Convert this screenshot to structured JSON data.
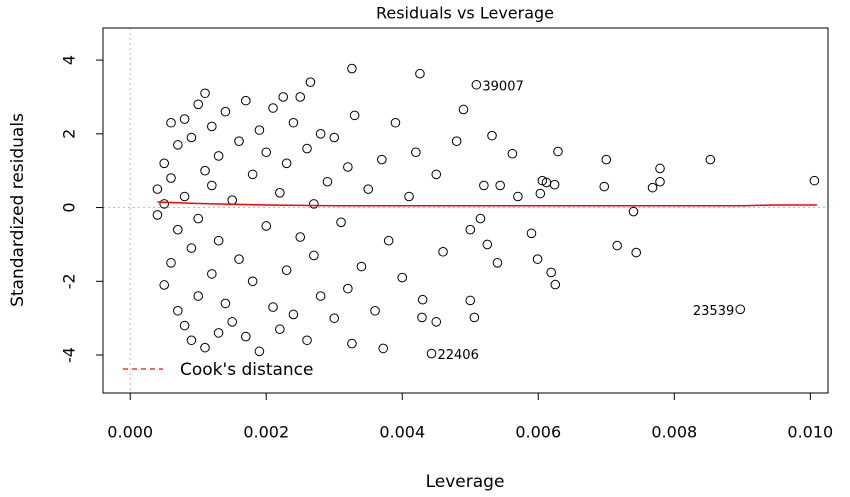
{
  "chart_data": {
    "type": "scatter",
    "title": "Residuals vs Leverage",
    "x_label": "Leverage",
    "y_label": "Standardized residuals",
    "xlim": [
      -0.0004,
      0.01026
    ],
    "ylim": [
      -5.03,
      4.87
    ],
    "xticks": [
      {
        "value": 0,
        "label": "0.000"
      },
      {
        "value": 0.002,
        "label": "0.002"
      },
      {
        "value": 0.004,
        "label": "0.004"
      },
      {
        "value": 0.006,
        "label": "0.006"
      },
      {
        "value": 0.008,
        "label": "0.008"
      },
      {
        "value": 0.01,
        "label": "0.010"
      }
    ],
    "yticks": [
      -4,
      -2,
      0,
      2,
      4
    ],
    "vline": 0,
    "hline": 0,
    "series": [
      {
        "color": "#000000",
        "x": [
          0.00509,
          0.00443,
          0.00897,
          0.01006,
          0.00853,
          0.00779,
          0.00779,
          0.00768,
          0.0074,
          0.00744,
          0.00716,
          0.007,
          0.00697,
          0.00629,
          0.00624,
          0.00612,
          0.00606,
          0.00625,
          0.00619,
          0.00599,
          0.00603,
          0.00426,
          0.00326,
          0.00265,
          0.00225,
          0.00506,
          0.005,
          0.0045,
          0.00429,
          0.00372,
          0.00326,
          0.00532,
          0.0049,
          0.00562,
          0.00544,
          0.00525,
          0.00515,
          0.0004,
          0.0004,
          0.0005,
          0.0005,
          0.0005,
          0.0006,
          0.0006,
          0.0006,
          0.0007,
          0.0007,
          0.0007,
          0.0008,
          0.0008,
          0.0008,
          0.0009,
          0.0009,
          0.0009,
          0.001,
          0.001,
          0.001,
          0.0011,
          0.0011,
          0.0011,
          0.0012,
          0.0012,
          0.0012,
          0.0013,
          0.0013,
          0.0013,
          0.0014,
          0.0014,
          0.0015,
          0.0015,
          0.0016,
          0.0016,
          0.0017,
          0.0017,
          0.0018,
          0.0018,
          0.0019,
          0.0019,
          0.002,
          0.002,
          0.0021,
          0.0021,
          0.0022,
          0.0022,
          0.0023,
          0.0023,
          0.0024,
          0.0024,
          0.0025,
          0.0025,
          0.0026,
          0.0026,
          0.0027,
          0.0027,
          0.0028,
          0.0028,
          0.0029,
          0.003,
          0.003,
          0.0031,
          0.0032,
          0.0032,
          0.0033,
          0.0034,
          0.0035,
          0.0036,
          0.0037,
          0.0038,
          0.0039,
          0.004,
          0.0041,
          0.0042,
          0.0043,
          0.0045,
          0.0046,
          0.0048,
          0.005,
          0.0052,
          0.0054,
          0.0057,
          0.0059
        ],
        "values": [
          3.33,
          -3.96,
          -2.76,
          0.73,
          1.3,
          1.06,
          0.7,
          0.54,
          -0.11,
          -1.22,
          -1.03,
          1.3,
          0.57,
          1.52,
          0.62,
          0.68,
          0.73,
          -2.09,
          -1.76,
          -1.4,
          0.38,
          3.63,
          3.77,
          3.4,
          3.0,
          -2.98,
          -2.52,
          -3.1,
          -2.98,
          -3.82,
          -3.69,
          1.95,
          2.66,
          1.46,
          0.6,
          -1.0,
          -0.3,
          0.5,
          -0.2,
          1.2,
          -2.1,
          0.1,
          2.3,
          -1.5,
          0.8,
          -2.8,
          1.7,
          -0.6,
          2.4,
          -3.2,
          0.3,
          -1.1,
          1.9,
          -3.6,
          2.8,
          -0.3,
          -2.4,
          3.1,
          1.0,
          -3.8,
          -1.8,
          2.2,
          0.6,
          -3.4,
          1.4,
          -0.9,
          2.6,
          -2.6,
          0.2,
          -3.1,
          1.8,
          -1.4,
          2.9,
          -3.5,
          0.9,
          -2.0,
          2.1,
          -3.9,
          -0.5,
          1.5,
          -2.7,
          2.7,
          0.4,
          -3.3,
          1.2,
          -1.7,
          2.3,
          -2.9,
          -0.8,
          3.0,
          1.6,
          -3.6,
          0.1,
          -1.3,
          2.0,
          -2.4,
          0.7,
          -3.0,
          1.9,
          -0.4,
          -2.2,
          1.1,
          2.5,
          -1.6,
          0.5,
          -2.8,
          1.3,
          -0.9,
          2.3,
          -1.9,
          0.3,
          1.5,
          -2.5,
          0.9,
          -1.2,
          1.8,
          -0.6,
          0.6,
          -1.5,
          0.3,
          -0.7
        ]
      }
    ],
    "smooth": {
      "color": "#ff0000",
      "x": [
        0.0004,
        0.001,
        0.002,
        0.003,
        0.004,
        0.005,
        0.006,
        0.007,
        0.008,
        0.009,
        0.0095,
        0.0101
      ],
      "values": [
        0.15,
        0.11,
        0.07,
        0.05,
        0.05,
        0.05,
        0.05,
        0.05,
        0.05,
        0.05,
        0.07,
        0.07
      ]
    },
    "annotations": [
      {
        "text": "39007",
        "x": 0.00509,
        "y": 3.33
      },
      {
        "text": "22406",
        "x": 0.00443,
        "y": -3.96
      },
      {
        "text": "23539",
        "x": 0.00897,
        "y": -2.76
      }
    ],
    "legend": {
      "label": "Cook's distance",
      "color": "#ff0000",
      "position": "bottom-left"
    }
  }
}
